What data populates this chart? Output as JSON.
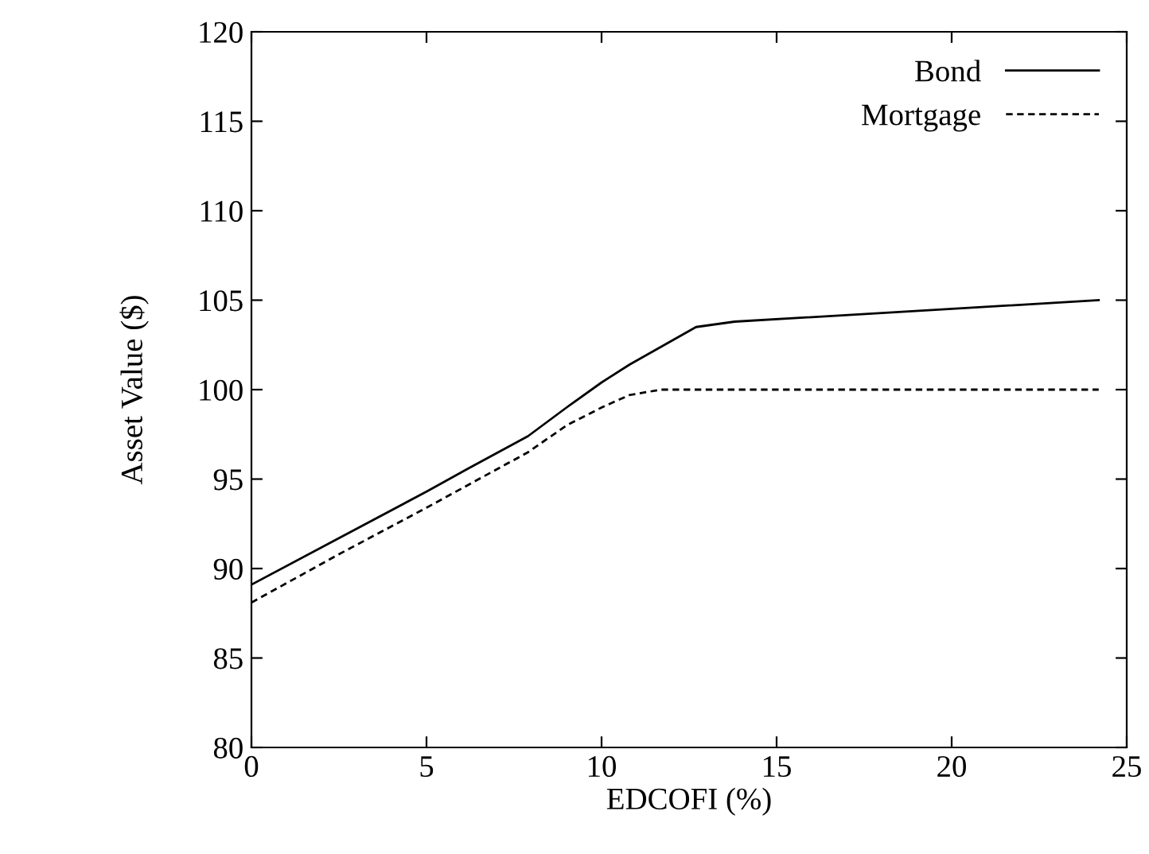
{
  "chart_data": {
    "type": "line",
    "xlabel": "EDCOFI (%)",
    "ylabel": "Asset Value ($)",
    "xlim": [
      0,
      25
    ],
    "ylim": [
      80,
      120
    ],
    "xticks": [
      0,
      5,
      10,
      15,
      20,
      25
    ],
    "yticks": [
      80,
      85,
      90,
      95,
      100,
      105,
      110,
      115,
      120
    ],
    "legend": "top right",
    "grid": false,
    "series": [
      {
        "name": "Bond",
        "color": "#000000",
        "line_style": "solid",
        "x": [
          0,
          2.5,
          5,
          6.2,
          7.9,
          9,
          10,
          10.8,
          12.7,
          13.8,
          24.2
        ],
        "values": [
          89.1,
          91.7,
          94.3,
          95.6,
          97.4,
          99.0,
          100.4,
          101.4,
          103.5,
          103.8,
          105.0
        ]
      },
      {
        "name": "Mortgage",
        "color": "#000000",
        "line_style": "dashed",
        "x": [
          0,
          2.5,
          5,
          7.9,
          9,
          10,
          10.8,
          11.7,
          24.2
        ],
        "values": [
          88.1,
          90.8,
          93.4,
          96.5,
          98.0,
          99.0,
          99.7,
          100.0,
          100.0
        ]
      }
    ]
  }
}
